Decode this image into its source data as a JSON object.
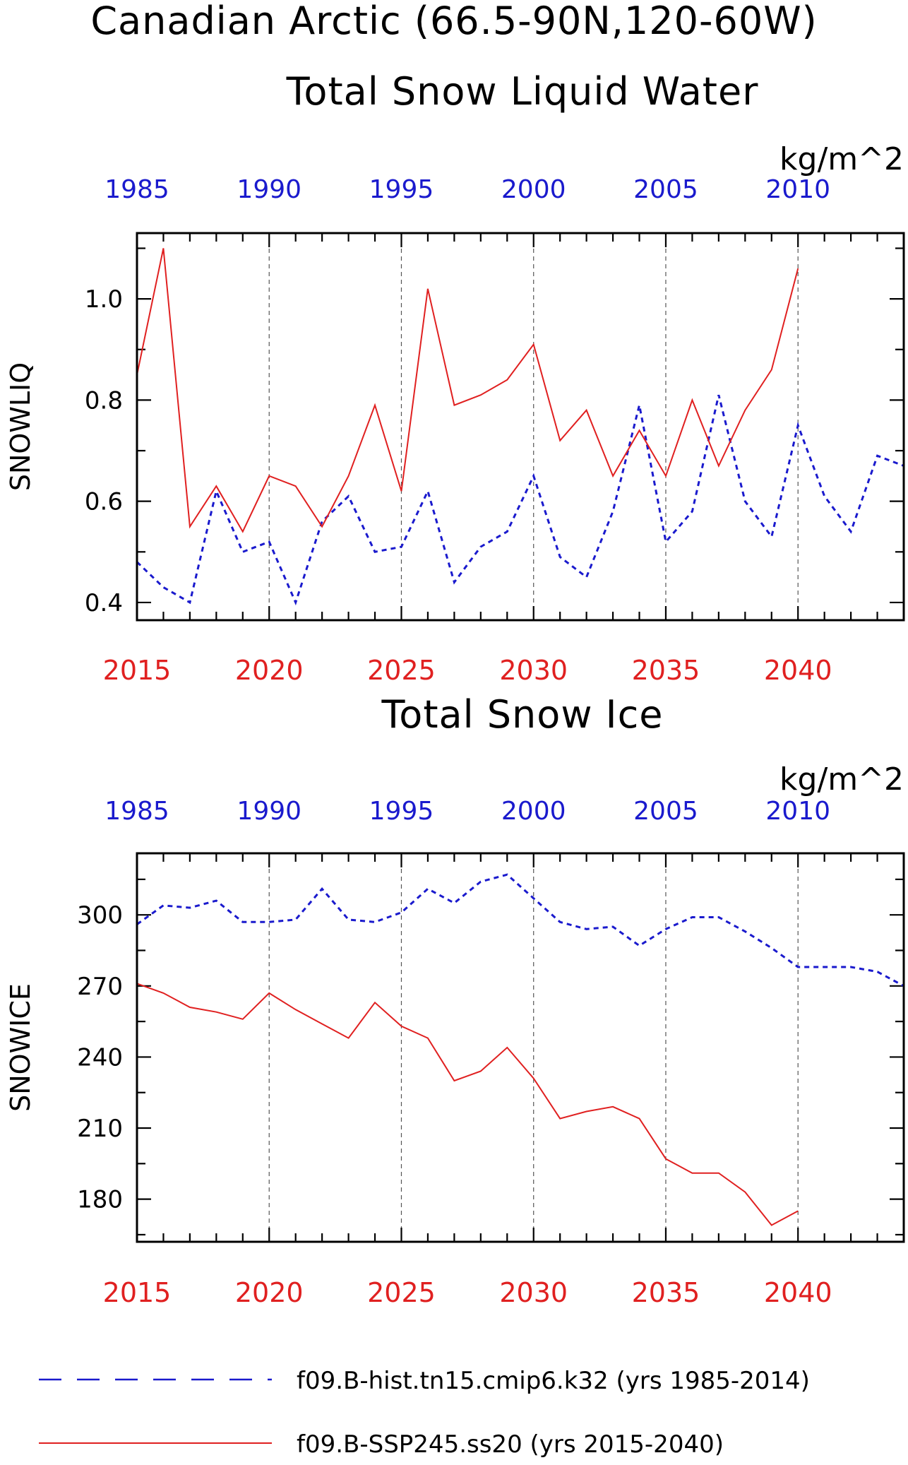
{
  "title": {
    "line1": "Canadian Arctic (66.5-90N,120-60W)"
  },
  "legend": {
    "hist": "f09.B-hist.tn15.cmip6.k32 (yrs 1985-2014)",
    "ssp": "f09.B-SSP245.ss20 (yrs 2015-2040)"
  },
  "colors": {
    "hist": "#1a1acd",
    "ssp": "#e02020"
  },
  "chart_data": [
    {
      "type": "line",
      "title": "Total Snow Liquid Water",
      "ylabel": "SNOWLIQ",
      "units": "kg/m^2",
      "ylim": [
        0.365,
        1.13
      ],
      "yticks": [
        "0.4",
        "0.6",
        "0.8",
        "1.0"
      ],
      "yticks_values": [
        0.4,
        0.6,
        0.8,
        1.0
      ],
      "bottom_axis": {
        "range": [
          2015,
          2044
        ],
        "labels": [
          "2015",
          "2020",
          "2025",
          "2030",
          "2035",
          "2040"
        ]
      },
      "top_axis": {
        "range": [
          1985,
          2014
        ],
        "labels": [
          "1985",
          "1990",
          "1995",
          "2000",
          "2005",
          "2010"
        ]
      },
      "grid": "vertical dashed at major ticks",
      "series": [
        {
          "name": "f09.B-hist.tn15.cmip6.k32 (yrs 1985-2014)",
          "style": "dashed",
          "x": [
            1985,
            1986,
            1987,
            1988,
            1989,
            1990,
            1991,
            1992,
            1993,
            1994,
            1995,
            1996,
            1997,
            1998,
            1999,
            2000,
            2001,
            2002,
            2003,
            2004,
            2005,
            2006,
            2007,
            2008,
            2009,
            2010,
            2011,
            2012,
            2013,
            2014
          ],
          "values": [
            0.48,
            0.43,
            0.4,
            0.62,
            0.5,
            0.52,
            0.4,
            0.56,
            0.61,
            0.5,
            0.51,
            0.62,
            0.44,
            0.51,
            0.54,
            0.65,
            0.49,
            0.45,
            0.58,
            0.79,
            0.52,
            0.58,
            0.81,
            0.6,
            0.53,
            0.75,
            0.61,
            0.54,
            0.69,
            0.67
          ]
        },
        {
          "name": "f09.B-SSP245.ss20 (yrs 2015-2040)",
          "style": "solid",
          "x": [
            2015,
            2016,
            2017,
            2018,
            2019,
            2020,
            2021,
            2022,
            2023,
            2024,
            2025,
            2026,
            2027,
            2028,
            2029,
            2030,
            2031,
            2032,
            2033,
            2034,
            2035,
            2036,
            2037,
            2038,
            2039,
            2040
          ],
          "values": [
            0.85,
            1.1,
            0.55,
            0.63,
            0.54,
            0.65,
            0.63,
            0.55,
            0.65,
            0.79,
            0.62,
            1.02,
            0.79,
            0.81,
            0.84,
            0.91,
            0.72,
            0.78,
            0.65,
            0.74,
            0.65,
            0.8,
            0.67,
            0.78,
            0.86,
            1.06
          ]
        }
      ]
    },
    {
      "type": "line",
      "title": "Total Snow Ice",
      "ylabel": "SNOWICE",
      "units": "kg/m^2",
      "ylim": [
        162,
        326
      ],
      "yticks": [
        "180",
        "210",
        "240",
        "270",
        "300"
      ],
      "yticks_values": [
        180,
        210,
        240,
        270,
        300
      ],
      "bottom_axis": {
        "range": [
          2015,
          2044
        ],
        "labels": [
          "2015",
          "2020",
          "2025",
          "2030",
          "2035",
          "2040"
        ]
      },
      "top_axis": {
        "range": [
          1985,
          2014
        ],
        "labels": [
          "1985",
          "1990",
          "1995",
          "2000",
          "2005",
          "2010"
        ]
      },
      "grid": "vertical dashed at major ticks",
      "series": [
        {
          "name": "f09.B-hist.tn15.cmip6.k32 (yrs 1985-2014)",
          "style": "dashed",
          "x": [
            1985,
            1986,
            1987,
            1988,
            1989,
            1990,
            1991,
            1992,
            1993,
            1994,
            1995,
            1996,
            1997,
            1998,
            1999,
            2000,
            2001,
            2002,
            2003,
            2004,
            2005,
            2006,
            2007,
            2008,
            2009,
            2010,
            2011,
            2012,
            2013,
            2014
          ],
          "values": [
            296,
            304,
            303,
            306,
            297,
            297,
            298,
            311,
            298,
            297,
            301,
            311,
            305,
            314,
            317,
            307,
            297,
            294,
            295,
            287,
            294,
            299,
            299,
            293,
            286,
            278,
            278,
            278,
            276,
            270
          ]
        },
        {
          "name": "f09.B-SSP245.ss20 (yrs 2015-2040)",
          "style": "solid",
          "x": [
            2015,
            2016,
            2017,
            2018,
            2019,
            2020,
            2021,
            2022,
            2023,
            2024,
            2025,
            2026,
            2027,
            2028,
            2029,
            2030,
            2031,
            2032,
            2033,
            2034,
            2035,
            2036,
            2037,
            2038,
            2039,
            2040
          ],
          "values": [
            271,
            267,
            261,
            259,
            256,
            267,
            260,
            254,
            248,
            263,
            253,
            248,
            230,
            234,
            244,
            231,
            214,
            217,
            219,
            214,
            197,
            191,
            191,
            183,
            169,
            175
          ]
        }
      ]
    }
  ]
}
